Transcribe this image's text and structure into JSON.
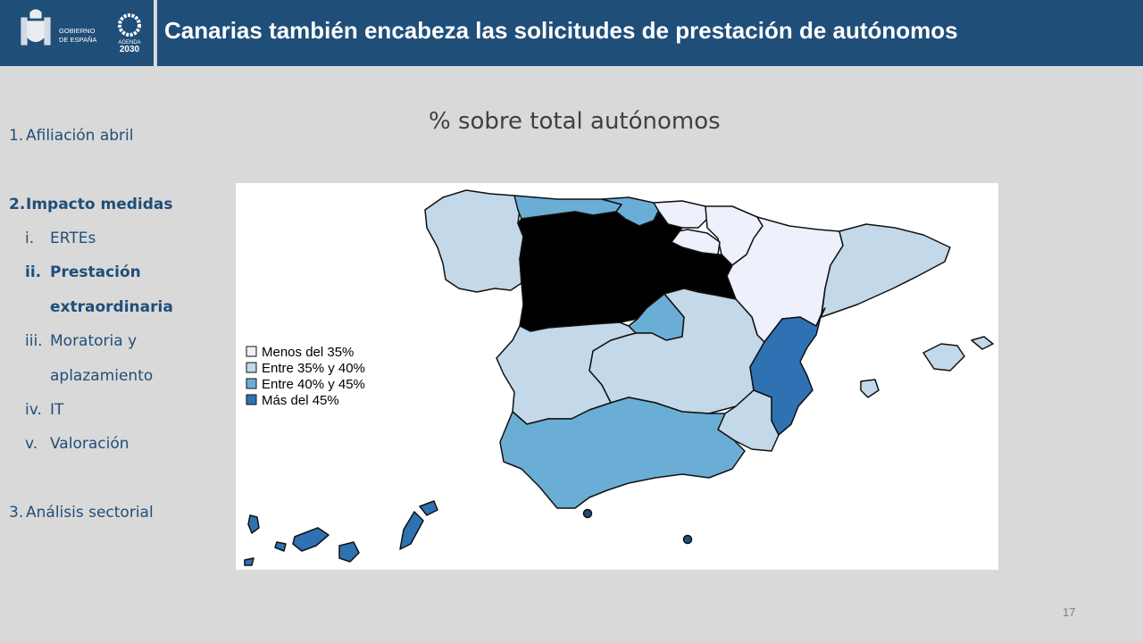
{
  "header": {
    "title": "Canarias también encabeza las solicitudes de prestación de autónomos",
    "gobierno_line1": "GOBIERNO",
    "gobierno_line2": "DE ESPAÑA",
    "agenda_line1": "AGENDA",
    "agenda_line2": "2030",
    "bar_color": "#1f4e79"
  },
  "sidebar": {
    "items": [
      {
        "num": "1.",
        "label": "Afiliación abril"
      },
      {
        "num": "2.",
        "label": "Impacto medidas"
      },
      {
        "num": "i.",
        "label": "ERTEs"
      },
      {
        "num": "ii.",
        "label": "Prestación"
      },
      {
        "num": "",
        "label": "extraordinaria"
      },
      {
        "num": "iii.",
        "label": "Moratoria y"
      },
      {
        "num": "",
        "label": "aplazamiento"
      },
      {
        "num": "iv.",
        "label": "IT"
      },
      {
        "num": "v.",
        "label": "Valoración"
      },
      {
        "num": "3.",
        "label": "Análisis sectorial"
      }
    ]
  },
  "map": {
    "title": "% sobre total autónomos",
    "legend": [
      {
        "label": "Menos del 35%",
        "color": "#eef0fb"
      },
      {
        "label": "Entre 35% y 40%",
        "color": "#c3d8e8"
      },
      {
        "label": "Entre 40% y 45%",
        "color": "#6aaed6"
      },
      {
        "label": "Más del 45%",
        "color": "#2e72b4"
      }
    ],
    "regions": [
      {
        "name": "Galicia",
        "class": "Entre 35% y 40%"
      },
      {
        "name": "Asturias",
        "class": "Entre 40% y 45%"
      },
      {
        "name": "Cantabria",
        "class": "Entre 40% y 45%"
      },
      {
        "name": "País Vasco",
        "class": "Menos del 35%"
      },
      {
        "name": "Navarra",
        "class": "Menos del 35%"
      },
      {
        "name": "La Rioja",
        "class": "Menos del 35%"
      },
      {
        "name": "Aragón",
        "class": "Menos del 35%"
      },
      {
        "name": "Cataluña",
        "class": "Entre 35% y 40%"
      },
      {
        "name": "Castilla y León",
        "class": "Menos del 35%"
      },
      {
        "name": "Madrid",
        "class": "Entre 40% y 45%"
      },
      {
        "name": "Castilla-La Mancha",
        "class": "Entre 35% y 40%"
      },
      {
        "name": "Extremadura",
        "class": "Entre 35% y 40%"
      },
      {
        "name": "Comunitat Valenciana",
        "class": "Más del 45%"
      },
      {
        "name": "Murcia",
        "class": "Entre 35% y 40%"
      },
      {
        "name": "Andalucía",
        "class": "Entre 40% y 45%"
      },
      {
        "name": "Baleares",
        "class": "Entre 35% y 40%"
      },
      {
        "name": "Canarias",
        "class": "Más del 45%"
      },
      {
        "name": "Ceuta",
        "class": "Más del 45%"
      },
      {
        "name": "Melilla",
        "class": "Más del 45%"
      }
    ]
  },
  "page_number": "17"
}
